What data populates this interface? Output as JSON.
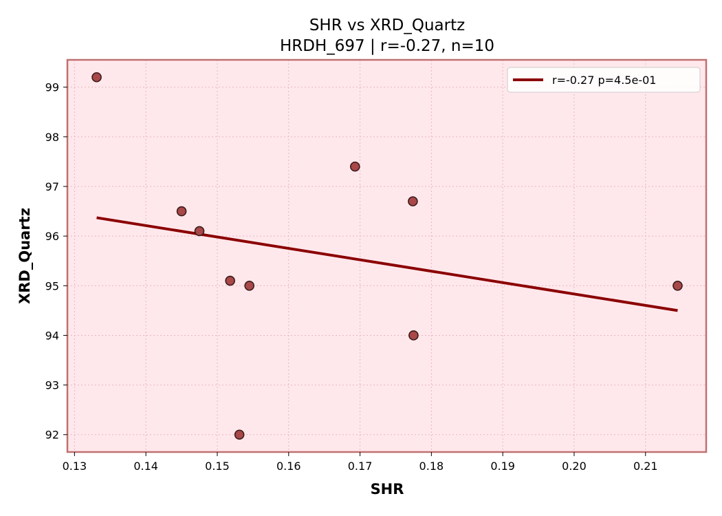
{
  "chart_data": {
    "type": "scatter",
    "title": "SHR vs XRD_Quartz",
    "subtitle": "HRDH_697 | r=-0.27, n=10",
    "xlabel": "SHR",
    "ylabel": "XRD_Quartz",
    "xlim": [
      0.129,
      0.2185
    ],
    "ylim": [
      91.65,
      99.55
    ],
    "xticks": [
      0.13,
      0.14,
      0.15,
      0.16,
      0.17,
      0.18,
      0.19,
      0.2,
      0.21
    ],
    "xtick_labels": [
      "0.13",
      "0.14",
      "0.15",
      "0.16",
      "0.17",
      "0.18",
      "0.19",
      "0.20",
      "0.21"
    ],
    "yticks": [
      92,
      93,
      94,
      95,
      96,
      97,
      98,
      99
    ],
    "ytick_labels": [
      "92",
      "93",
      "94",
      "95",
      "96",
      "97",
      "98",
      "99"
    ],
    "grid": true,
    "legend_position": "top-right",
    "points": [
      {
        "x": 0.1331,
        "y": 99.2
      },
      {
        "x": 0.145,
        "y": 96.5
      },
      {
        "x": 0.1475,
        "y": 96.1
      },
      {
        "x": 0.1518,
        "y": 95.1
      },
      {
        "x": 0.1531,
        "y": 92.0
      },
      {
        "x": 0.1545,
        "y": 95.0
      },
      {
        "x": 0.1693,
        "y": 97.4
      },
      {
        "x": 0.1774,
        "y": 96.7
      },
      {
        "x": 0.1775,
        "y": 94.0
      },
      {
        "x": 0.2145,
        "y": 95.0
      }
    ],
    "fit_line": {
      "label": "r=-0.27  p=4.5e-01",
      "x": [
        0.1331,
        0.2145
      ],
      "y": [
        96.37,
        94.5
      ]
    },
    "colors": {
      "plot_bg": "#ffe8ec",
      "frame": "#c07070",
      "point_fill": "#a84848",
      "point_edge": "#3a1a1a",
      "fit_line": "#8b0000",
      "grid": "#e2b8be"
    }
  }
}
